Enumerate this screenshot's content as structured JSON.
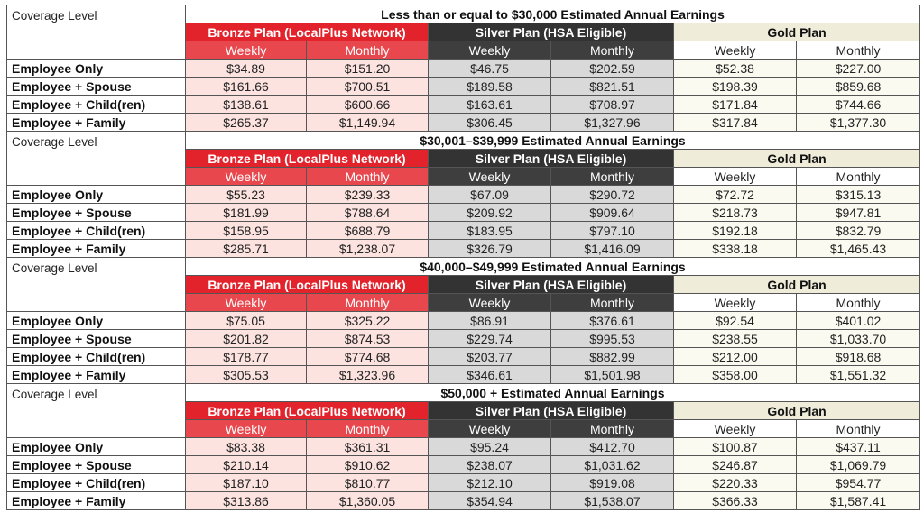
{
  "coverage_label": "Coverage Level",
  "plans": {
    "bronze": "Bronze Plan (LocalPlus Network)",
    "silver": "Silver Plan (HSA Eligible)",
    "gold": "Gold Plan"
  },
  "periods": {
    "weekly": "Weekly",
    "monthly": "Monthly"
  },
  "sections": [
    {
      "tier": "Less than or equal to $30,000 Estimated Annual Earnings",
      "rows": [
        {
          "level": "Employee Only",
          "bronze_weekly": "$34.89",
          "bronze_monthly": "$151.20",
          "silver_weekly": "$46.75",
          "silver_monthly": "$202.59",
          "gold_weekly": "$52.38",
          "gold_monthly": "$227.00"
        },
        {
          "level": "Employee + Spouse",
          "bronze_weekly": "$161.66",
          "bronze_monthly": "$700.51",
          "silver_weekly": "$189.58",
          "silver_monthly": "$821.51",
          "gold_weekly": "$198.39",
          "gold_monthly": "$859.68"
        },
        {
          "level": "Employee + Child(ren)",
          "bronze_weekly": "$138.61",
          "bronze_monthly": "$600.66",
          "silver_weekly": "$163.61",
          "silver_monthly": "$708.97",
          "gold_weekly": "$171.84",
          "gold_monthly": "$744.66"
        },
        {
          "level": "Employee + Family",
          "bronze_weekly": "$265.37",
          "bronze_monthly": "$1,149.94",
          "silver_weekly": "$306.45",
          "silver_monthly": "$1,327.96",
          "gold_weekly": "$317.84",
          "gold_monthly": "$1,377.30"
        }
      ]
    },
    {
      "tier": "$30,001–$39,999 Estimated Annual Earnings",
      "rows": [
        {
          "level": "Employee Only",
          "bronze_weekly": "$55.23",
          "bronze_monthly": "$239.33",
          "silver_weekly": "$67.09",
          "silver_monthly": "$290.72",
          "gold_weekly": "$72.72",
          "gold_monthly": "$315.13"
        },
        {
          "level": "Employee + Spouse",
          "bronze_weekly": "$181.99",
          "bronze_monthly": "$788.64",
          "silver_weekly": "$209.92",
          "silver_monthly": "$909.64",
          "gold_weekly": "$218.73",
          "gold_monthly": "$947.81"
        },
        {
          "level": "Employee + Child(ren)",
          "bronze_weekly": "$158.95",
          "bronze_monthly": "$688.79",
          "silver_weekly": "$183.95",
          "silver_monthly": "$797.10",
          "gold_weekly": "$192.18",
          "gold_monthly": "$832.79"
        },
        {
          "level": "Employee + Family",
          "bronze_weekly": "$285.71",
          "bronze_monthly": "$1,238.07",
          "silver_weekly": "$326.79",
          "silver_monthly": "$1,416.09",
          "gold_weekly": "$338.18",
          "gold_monthly": "$1,465.43"
        }
      ]
    },
    {
      "tier": "$40,000–$49,999 Estimated Annual Earnings",
      "rows": [
        {
          "level": "Employee Only",
          "bronze_weekly": "$75.05",
          "bronze_monthly": "$325.22",
          "silver_weekly": "$86.91",
          "silver_monthly": "$376.61",
          "gold_weekly": "$92.54",
          "gold_monthly": "$401.02"
        },
        {
          "level": "Employee + Spouse",
          "bronze_weekly": "$201.82",
          "bronze_monthly": "$874.53",
          "silver_weekly": "$229.74",
          "silver_monthly": "$995.53",
          "gold_weekly": "$238.55",
          "gold_monthly": "$1,033.70"
        },
        {
          "level": "Employee + Child(ren)",
          "bronze_weekly": "$178.77",
          "bronze_monthly": "$774.68",
          "silver_weekly": "$203.77",
          "silver_monthly": "$882.99",
          "gold_weekly": "$212.00",
          "gold_monthly": "$918.68"
        },
        {
          "level": "Employee + Family",
          "bronze_weekly": "$305.53",
          "bronze_monthly": "$1,323.96",
          "silver_weekly": "$346.61",
          "silver_monthly": "$1,501.98",
          "gold_weekly": "$358.00",
          "gold_monthly": "$1,551.32"
        }
      ]
    },
    {
      "tier": "$50,000 + Estimated Annual Earnings",
      "rows": [
        {
          "level": "Employee Only",
          "bronze_weekly": "$83.38",
          "bronze_monthly": "$361.31",
          "silver_weekly": "$95.24",
          "silver_monthly": "$412.70",
          "gold_weekly": "$100.87",
          "gold_monthly": "$437.11"
        },
        {
          "level": "Employee + Spouse",
          "bronze_weekly": "$210.14",
          "bronze_monthly": "$910.62",
          "silver_weekly": "$238.07",
          "silver_monthly": "$1,031.62",
          "gold_weekly": "$246.87",
          "gold_monthly": "$1,069.79"
        },
        {
          "level": "Employee + Child(ren)",
          "bronze_weekly": "$187.10",
          "bronze_monthly": "$810.77",
          "silver_weekly": "$212.10",
          "silver_monthly": "$919.08",
          "gold_weekly": "$220.33",
          "gold_monthly": "$954.77"
        },
        {
          "level": "Employee + Family",
          "bronze_weekly": "$313.86",
          "bronze_monthly": "$1,360.05",
          "silver_weekly": "$354.94",
          "silver_monthly": "$1,538.07",
          "gold_weekly": "$366.33",
          "gold_monthly": "$1,587.41"
        }
      ]
    }
  ]
}
